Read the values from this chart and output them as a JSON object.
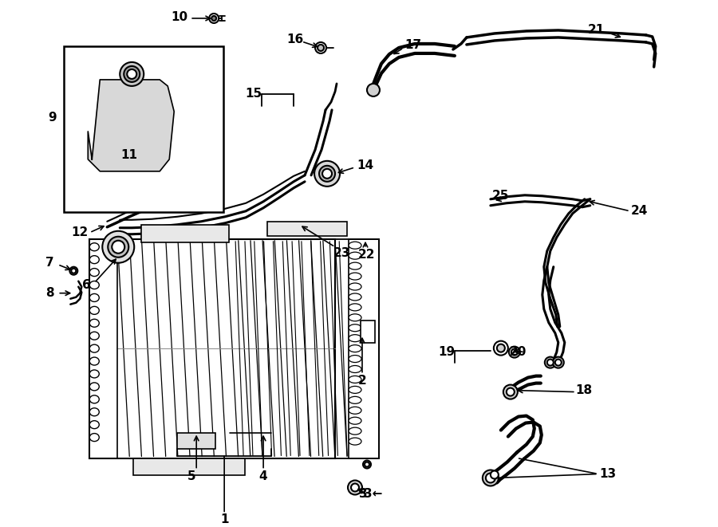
{
  "bg_color": "#ffffff",
  "lc": "#000000",
  "lw": 1.5
}
